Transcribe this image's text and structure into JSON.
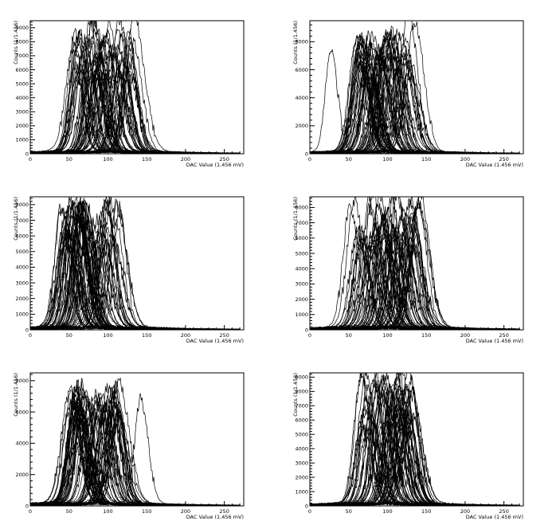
{
  "chart_data": [
    {
      "type": "line",
      "xlabel": "DAC Value (1.456 mV)",
      "ylabel": "Counts (1/1.456)",
      "xlim": [
        0,
        275
      ],
      "ylim": [
        0,
        9500
      ],
      "x_ticks": [
        0,
        50,
        100,
        150,
        200,
        250
      ],
      "y_ticks": [
        0,
        1000,
        2000,
        3000,
        4000,
        5000,
        6000,
        7000,
        8000,
        9000
      ],
      "y_tick_labels": [
        "0",
        "1000",
        "2000",
        "3000",
        "4000",
        "5000",
        "6000",
        "7000",
        "8000",
        "9000"
      ],
      "n_curves": 70,
      "peak_range": [
        55,
        135
      ],
      "peak_height_range": [
        5000,
        9500
      ],
      "outlier_peaks": [
        [
          56,
          7600
        ],
        [
          133,
          9600
        ]
      ],
      "seed": 11
    },
    {
      "type": "line",
      "xlabel": "DAC Value (1.456 mV)",
      "ylabel": "Counts (1/1.456)",
      "xlim": [
        0,
        275
      ],
      "ylim": [
        0,
        9500
      ],
      "x_ticks": [
        0,
        50,
        100,
        150,
        200,
        250
      ],
      "y_ticks": [
        0,
        2000,
        4000,
        6000,
        8000
      ],
      "y_tick_labels": [
        "0",
        "2000",
        "4000",
        "6000",
        "8000"
      ],
      "n_curves": 70,
      "peak_range": [
        60,
        130
      ],
      "peak_height_range": [
        5000,
        8500
      ],
      "outlier_peaks": [
        [
          27,
          7200
        ],
        [
          127,
          9800
        ],
        [
          135,
          9200
        ]
      ],
      "seed": 23
    },
    {
      "type": "line",
      "xlabel": "DAC Value (1.456 mV)",
      "ylabel": "Counts (1/1.456)",
      "xlim": [
        0,
        275
      ],
      "ylim": [
        0,
        8500
      ],
      "x_ticks": [
        0,
        50,
        100,
        150,
        200,
        250
      ],
      "y_ticks": [
        0,
        1000,
        2000,
        3000,
        4000,
        5000,
        6000,
        7000,
        8000
      ],
      "y_tick_labels": [
        "0",
        "1000",
        "2000",
        "3000",
        "4000",
        "5000",
        "6000",
        "7000",
        "8000"
      ],
      "n_curves": 70,
      "peak_range": [
        40,
        115
      ],
      "peak_height_range": [
        5000,
        8100
      ],
      "outlier_peaks": [
        [
          40,
          7600
        ],
        [
          115,
          7200
        ]
      ],
      "seed": 37
    },
    {
      "type": "line",
      "xlabel": "DAC Value (1.456 mV)",
      "ylabel": "Counts (1/1.456)",
      "xlim": [
        0,
        275
      ],
      "ylim": [
        0,
        8700
      ],
      "x_ticks": [
        0,
        50,
        100,
        150,
        200,
        250
      ],
      "y_ticks": [
        0,
        1000,
        2000,
        3000,
        4000,
        5000,
        6000,
        7000,
        8000
      ],
      "y_tick_labels": [
        "0",
        "1000",
        "2000",
        "3000",
        "4000",
        "5000",
        "6000",
        "7000",
        "8000"
      ],
      "n_curves": 70,
      "peak_range": [
        55,
        140
      ],
      "peak_height_range": [
        5000,
        8700
      ],
      "outlier_peaks": [
        [
          52,
          7800
        ],
        [
          142,
          8800
        ]
      ],
      "seed": 51
    },
    {
      "type": "line",
      "xlabel": "DAC Value (1.456 mV)",
      "ylabel": "Counts (1/1.456)",
      "xlim": [
        0,
        275
      ],
      "ylim": [
        0,
        8500
      ],
      "x_ticks": [
        0,
        50,
        100,
        150,
        200,
        250
      ],
      "y_ticks": [
        0,
        2000,
        4000,
        6000,
        8000
      ],
      "y_tick_labels": [
        "0",
        "2000",
        "4000",
        "6000",
        "8000"
      ],
      "n_curves": 70,
      "peak_range": [
        50,
        115
      ],
      "peak_height_range": [
        5000,
        7600
      ],
      "outlier_peaks": [
        [
          142,
          6600
        ],
        [
          114,
          7600
        ]
      ],
      "seed": 67
    },
    {
      "type": "line",
      "xlabel": "DAC Value (1.456 mV)",
      "ylabel": "Counts (1/1.456)",
      "xlim": [
        0,
        275
      ],
      "ylim": [
        0,
        9300
      ],
      "x_ticks": [
        0,
        50,
        100,
        150,
        200,
        250
      ],
      "y_ticks": [
        0,
        1000,
        2000,
        3000,
        4000,
        5000,
        6000,
        7000,
        8000,
        9000
      ],
      "y_tick_labels": [
        "0",
        "1000",
        "2000",
        "3000",
        "4000",
        "5000",
        "6000",
        "7000",
        "8000",
        "9000"
      ],
      "n_curves": 70,
      "peak_range": [
        65,
        135
      ],
      "peak_height_range": [
        5000,
        9300
      ],
      "outlier_peaks": [
        [
          115,
          9200
        ],
        [
          130,
          8600
        ]
      ],
      "seed": 83
    }
  ]
}
